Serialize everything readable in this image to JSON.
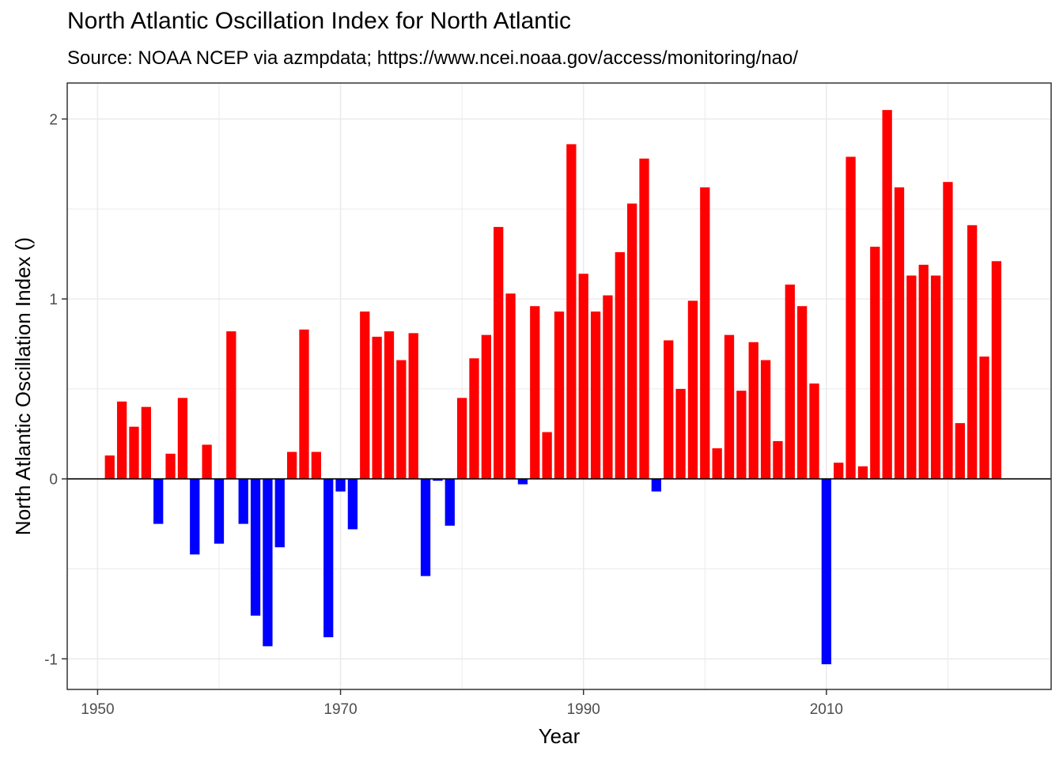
{
  "chart_data": {
    "type": "bar",
    "title": "North Atlantic Oscillation Index  for  North Atlantic",
    "subtitle": "Source: NOAA NCEP via azmpdata; https://www.ncei.noaa.gov/access/monitoring/nao/",
    "xlabel": "Year",
    "ylabel": "North Atlantic Oscillation Index ()",
    "xlim": [
      1947.5,
      2028.5
    ],
    "ylim": [
      -1.17,
      2.2
    ],
    "x_ticks": [
      1950,
      1970,
      1990,
      2010
    ],
    "x_tick_labels": [
      "1950",
      "1970",
      "1990",
      "2010"
    ],
    "y_ticks": [
      -1,
      0,
      1,
      2
    ],
    "y_tick_labels": [
      "-1",
      "0",
      "1",
      "2"
    ],
    "grid": true,
    "legend": "none",
    "positive_color": "#ff0000",
    "negative_color": "#0000ff",
    "zero_line_color": "#000000",
    "x": [
      1951,
      1952,
      1953,
      1954,
      1955,
      1956,
      1957,
      1958,
      1959,
      1960,
      1961,
      1962,
      1963,
      1964,
      1965,
      1966,
      1967,
      1968,
      1969,
      1970,
      1971,
      1972,
      1973,
      1974,
      1975,
      1976,
      1977,
      1978,
      1979,
      1980,
      1981,
      1982,
      1983,
      1984,
      1985,
      1986,
      1987,
      1988,
      1989,
      1990,
      1991,
      1992,
      1993,
      1994,
      1995,
      1996,
      1997,
      1998,
      1999,
      2000,
      2001,
      2002,
      2003,
      2004,
      2005,
      2006,
      2007,
      2008,
      2009,
      2010,
      2011,
      2012,
      2013,
      2014,
      2015,
      2016,
      2017,
      2018,
      2019,
      2020,
      2021,
      2022,
      2023,
      2024
    ],
    "values": [
      0.13,
      0.43,
      0.29,
      0.4,
      -0.25,
      0.14,
      0.45,
      -0.42,
      0.19,
      -0.36,
      0.82,
      -0.25,
      -0.76,
      -0.93,
      -0.38,
      0.15,
      0.83,
      0.15,
      -0.88,
      -0.07,
      -0.28,
      0.93,
      0.79,
      0.82,
      0.66,
      0.81,
      -0.54,
      -0.01,
      -0.26,
      0.45,
      0.67,
      0.8,
      1.4,
      1.03,
      -0.03,
      0.96,
      0.26,
      0.93,
      1.86,
      1.14,
      0.93,
      1.02,
      1.26,
      1.53,
      1.78,
      -0.07,
      0.77,
      0.5,
      0.99,
      1.62,
      0.17,
      0.8,
      0.49,
      0.76,
      0.66,
      0.21,
      1.08,
      0.96,
      0.53,
      -1.03,
      0.09,
      1.79,
      0.07,
      1.29,
      2.05,
      1.62,
      1.13,
      1.19,
      1.13,
      1.65,
      0.31,
      1.41,
      0.68,
      1.21
    ]
  }
}
